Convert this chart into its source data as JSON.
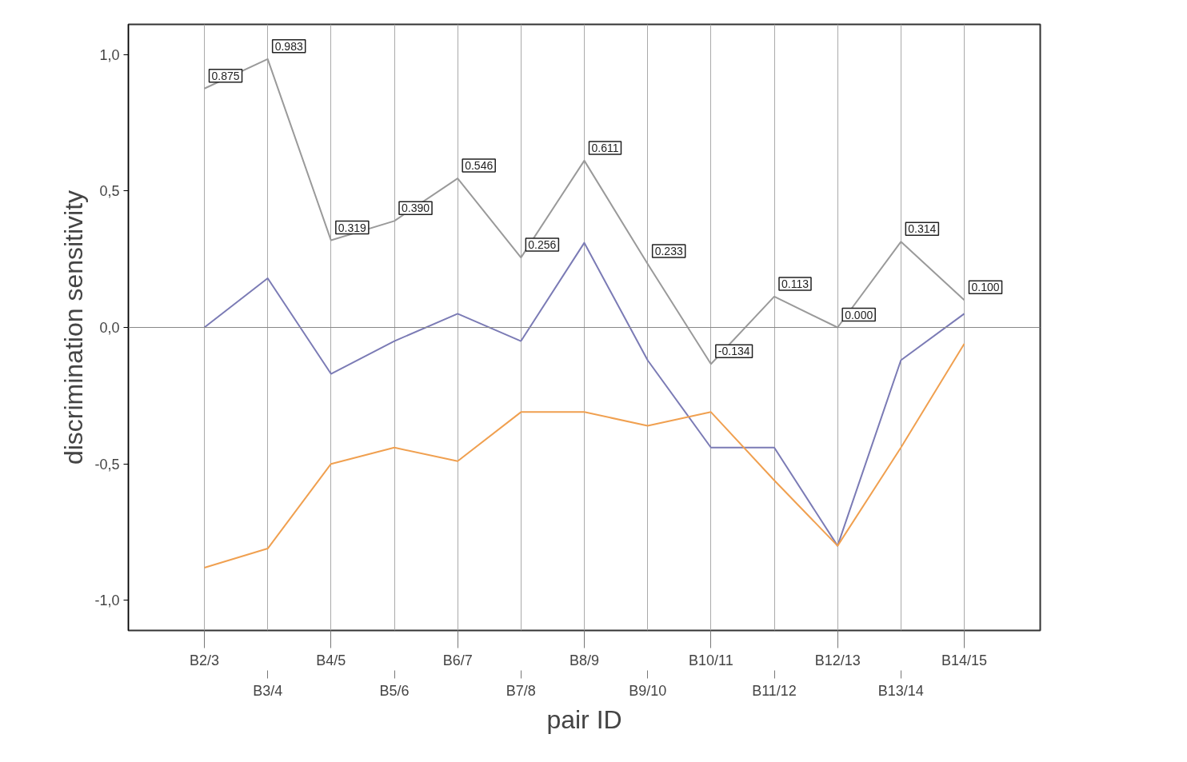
{
  "chart_data": {
    "type": "line",
    "xlabel": "pair ID",
    "ylabel": "discrimination sensitivity",
    "categories": [
      "B2/3",
      "B3/4",
      "B4/5",
      "B5/6",
      "B6/7",
      "B7/8",
      "B8/9",
      "B9/10",
      "B10/11",
      "B11/12",
      "B12/13",
      "B13/14",
      "B14/15"
    ],
    "series": [
      {
        "color": "#9a9a9a",
        "values": [
          0.875,
          0.983,
          0.319,
          0.39,
          0.546,
          0.256,
          0.611,
          0.233,
          -0.134,
          0.113,
          0.0,
          0.314,
          0.1
        ],
        "value_labels": [
          "0.875",
          "0.983",
          "0.319",
          "0.390",
          "0.546",
          "0.256",
          "0.611",
          "0.233",
          "-0.134",
          "0.113",
          "0.000",
          "0.314",
          "0.100"
        ]
      },
      {
        "color": "#7b7bb5",
        "values": [
          0.0,
          0.18,
          -0.17,
          -0.05,
          0.05,
          -0.05,
          0.31,
          -0.12,
          -0.44,
          -0.44,
          -0.8,
          -0.12,
          0.05
        ]
      },
      {
        "color": "#f0a050",
        "values": [
          -0.88,
          -0.81,
          -0.5,
          -0.44,
          -0.49,
          -0.31,
          -0.31,
          -0.36,
          -0.31,
          -0.56,
          -0.8,
          -0.44,
          -0.06
        ]
      }
    ],
    "ylim": [
      -1.11,
      1.11
    ],
    "yticks": [
      {
        "value": -1.0,
        "label": "-1,0"
      },
      {
        "value": -0.5,
        "label": "-0,5"
      },
      {
        "value": 0.0,
        "label": "0,0"
      },
      {
        "value": 0.5,
        "label": "0,5"
      },
      {
        "value": 1.0,
        "label": "1,0"
      }
    ],
    "ref_lines": [
      {
        "axis": "y",
        "value": 0,
        "color": "#888888"
      }
    ],
    "grid": "x",
    "marker": "none",
    "line_style": "solid"
  }
}
